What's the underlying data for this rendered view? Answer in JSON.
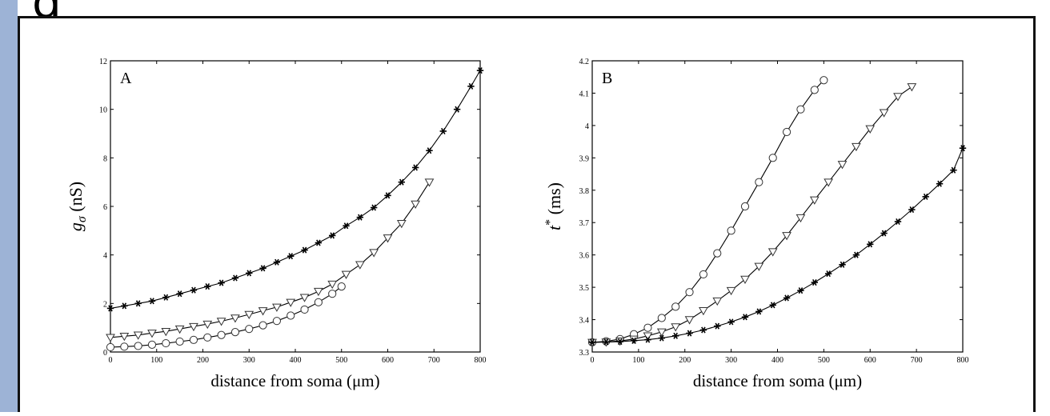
{
  "page": {
    "heading_fragment": "g"
  },
  "chart_data": [
    {
      "type": "line",
      "panel_label": "A",
      "xlabel": "distance from soma (μm)",
      "ylabel_main": "g",
      "ylabel_sub": "σ",
      "ylabel_unit": " (nS)",
      "xlim": [
        0,
        800
      ],
      "ylim": [
        0,
        12
      ],
      "xticks": [
        0,
        100,
        200,
        300,
        400,
        500,
        600,
        700,
        800
      ],
      "yticks": [
        0,
        2,
        4,
        6,
        8,
        10,
        12
      ],
      "grid": false,
      "series": [
        {
          "marker": "star",
          "x": [
            0,
            30,
            60,
            90,
            120,
            150,
            180,
            210,
            240,
            270,
            300,
            330,
            360,
            390,
            420,
            450,
            480,
            510,
            540,
            570,
            600,
            630,
            660,
            690,
            720,
            750,
            780,
            800
          ],
          "values": [
            1.8,
            1.9,
            2.0,
            2.1,
            2.25,
            2.4,
            2.55,
            2.7,
            2.85,
            3.05,
            3.25,
            3.45,
            3.7,
            3.95,
            4.2,
            4.5,
            4.8,
            5.2,
            5.55,
            5.95,
            6.45,
            7.0,
            7.6,
            8.3,
            9.1,
            10.0,
            10.95,
            11.6
          ]
        },
        {
          "marker": "triangle",
          "x": [
            0,
            30,
            60,
            90,
            120,
            150,
            180,
            210,
            240,
            270,
            300,
            330,
            360,
            390,
            420,
            450,
            480,
            510,
            540,
            570,
            600,
            630,
            660,
            690
          ],
          "values": [
            0.6,
            0.65,
            0.7,
            0.78,
            0.85,
            0.95,
            1.05,
            1.15,
            1.27,
            1.4,
            1.55,
            1.7,
            1.85,
            2.05,
            2.25,
            2.5,
            2.8,
            3.2,
            3.6,
            4.1,
            4.7,
            5.3,
            6.1,
            7.0
          ]
        },
        {
          "marker": "circle",
          "x": [
            0,
            30,
            60,
            90,
            120,
            150,
            180,
            210,
            240,
            270,
            300,
            330,
            360,
            390,
            420,
            450,
            480,
            500
          ],
          "values": [
            0.2,
            0.22,
            0.25,
            0.3,
            0.36,
            0.43,
            0.5,
            0.6,
            0.7,
            0.82,
            0.95,
            1.1,
            1.28,
            1.5,
            1.75,
            2.05,
            2.4,
            2.7
          ]
        }
      ]
    },
    {
      "type": "line",
      "panel_label": "B",
      "xlabel": "distance from soma (μm)",
      "ylabel_main": "t",
      "ylabel_sup": "*",
      "ylabel_unit": " (ms)",
      "xlim": [
        0,
        800
      ],
      "ylim": [
        3.3,
        4.2
      ],
      "xticks": [
        0,
        100,
        200,
        300,
        400,
        500,
        600,
        700,
        800
      ],
      "yticks": [
        3.3,
        3.4,
        3.5,
        3.6,
        3.7,
        3.8,
        3.9,
        4,
        4.1,
        4.2
      ],
      "grid": false,
      "series": [
        {
          "marker": "circle",
          "x": [
            0,
            30,
            60,
            90,
            120,
            150,
            180,
            210,
            240,
            270,
            300,
            330,
            360,
            390,
            420,
            450,
            480,
            500
          ],
          "values": [
            3.33,
            3.333,
            3.34,
            3.355,
            3.375,
            3.405,
            3.44,
            3.485,
            3.54,
            3.605,
            3.675,
            3.75,
            3.825,
            3.9,
            3.98,
            4.05,
            4.11,
            4.14
          ]
        },
        {
          "marker": "triangle",
          "x": [
            0,
            30,
            60,
            90,
            120,
            150,
            180,
            210,
            240,
            270,
            300,
            330,
            360,
            390,
            420,
            450,
            480,
            510,
            540,
            570,
            600,
            630,
            660,
            690
          ],
          "values": [
            3.33,
            3.331,
            3.334,
            3.34,
            3.35,
            3.362,
            3.378,
            3.4,
            3.428,
            3.458,
            3.49,
            3.525,
            3.565,
            3.61,
            3.66,
            3.715,
            3.77,
            3.825,
            3.88,
            3.935,
            3.99,
            4.04,
            4.09,
            4.12
          ]
        },
        {
          "marker": "star",
          "x": [
            0,
            30,
            60,
            90,
            120,
            150,
            180,
            210,
            240,
            270,
            300,
            330,
            360,
            390,
            420,
            450,
            480,
            510,
            540,
            570,
            600,
            630,
            660,
            690,
            720,
            750,
            780,
            800
          ],
          "values": [
            3.33,
            3.331,
            3.332,
            3.335,
            3.338,
            3.343,
            3.35,
            3.358,
            3.368,
            3.38,
            3.393,
            3.408,
            3.425,
            3.445,
            3.467,
            3.49,
            3.515,
            3.542,
            3.57,
            3.6,
            3.633,
            3.667,
            3.703,
            3.74,
            3.78,
            3.82,
            3.862,
            3.93
          ]
        }
      ]
    }
  ]
}
